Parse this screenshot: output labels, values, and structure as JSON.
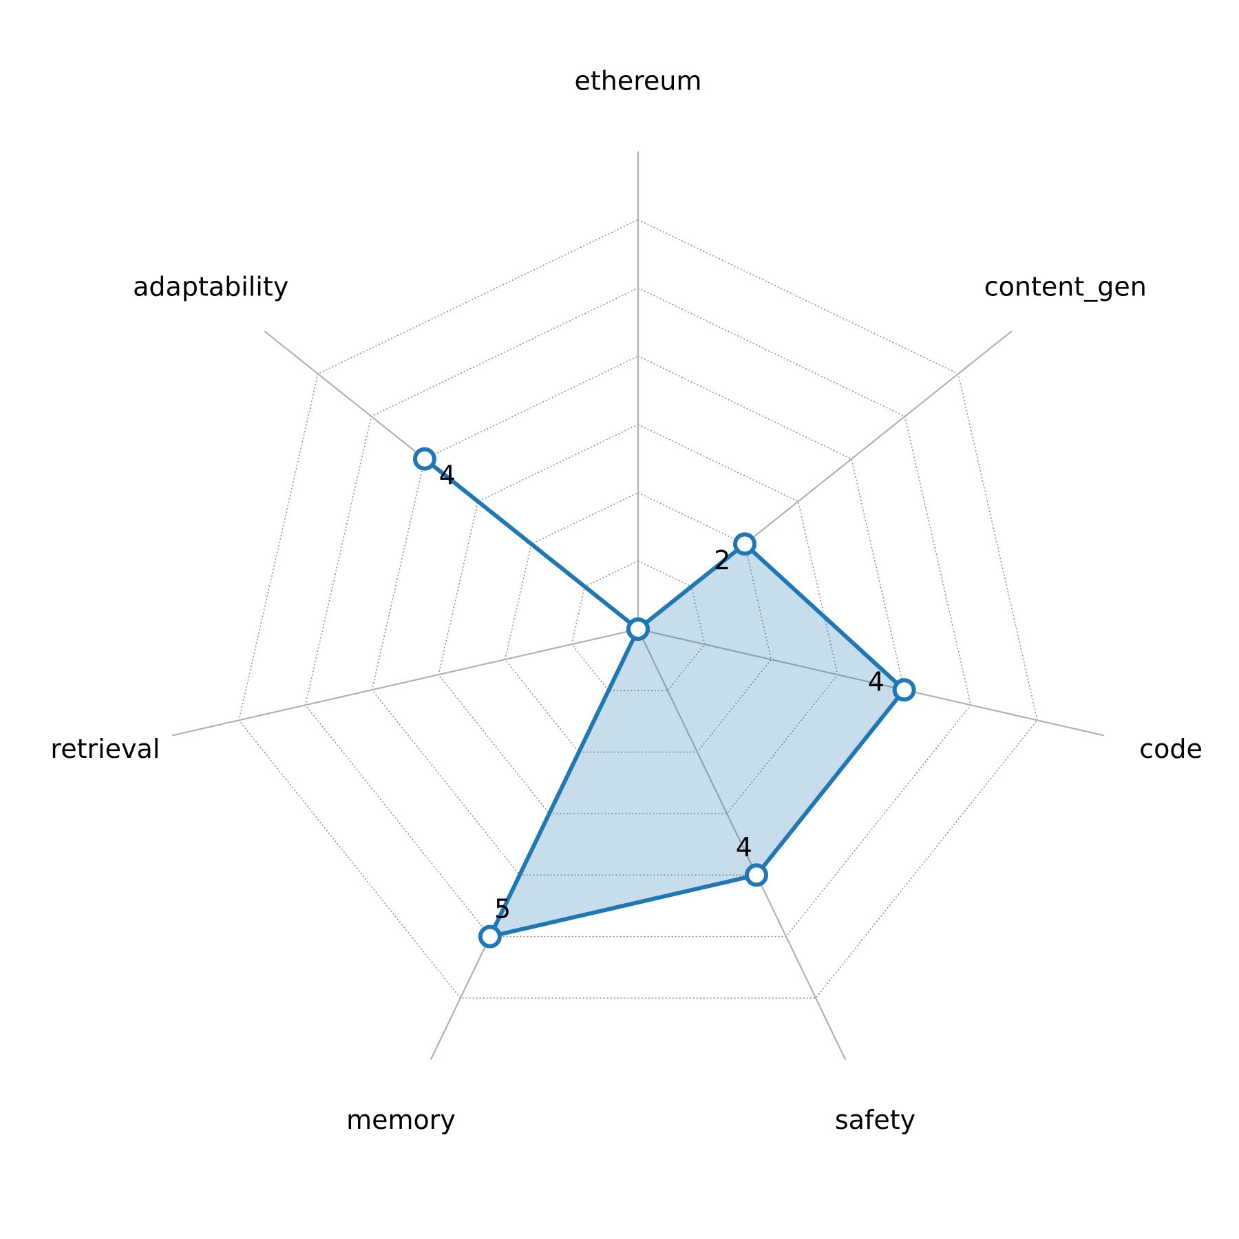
{
  "chart_data": {
    "type": "radar",
    "categories": [
      "ethereum",
      "content_gen",
      "code",
      "safety",
      "memory",
      "retrieval",
      "adaptability"
    ],
    "values": [
      0,
      2,
      4,
      4,
      5,
      0,
      4
    ],
    "color": "#1f77b4",
    "ylim": [
      0,
      7
    ],
    "yticks": [
      1,
      2,
      3,
      4,
      5,
      6
    ],
    "grid": true
  }
}
